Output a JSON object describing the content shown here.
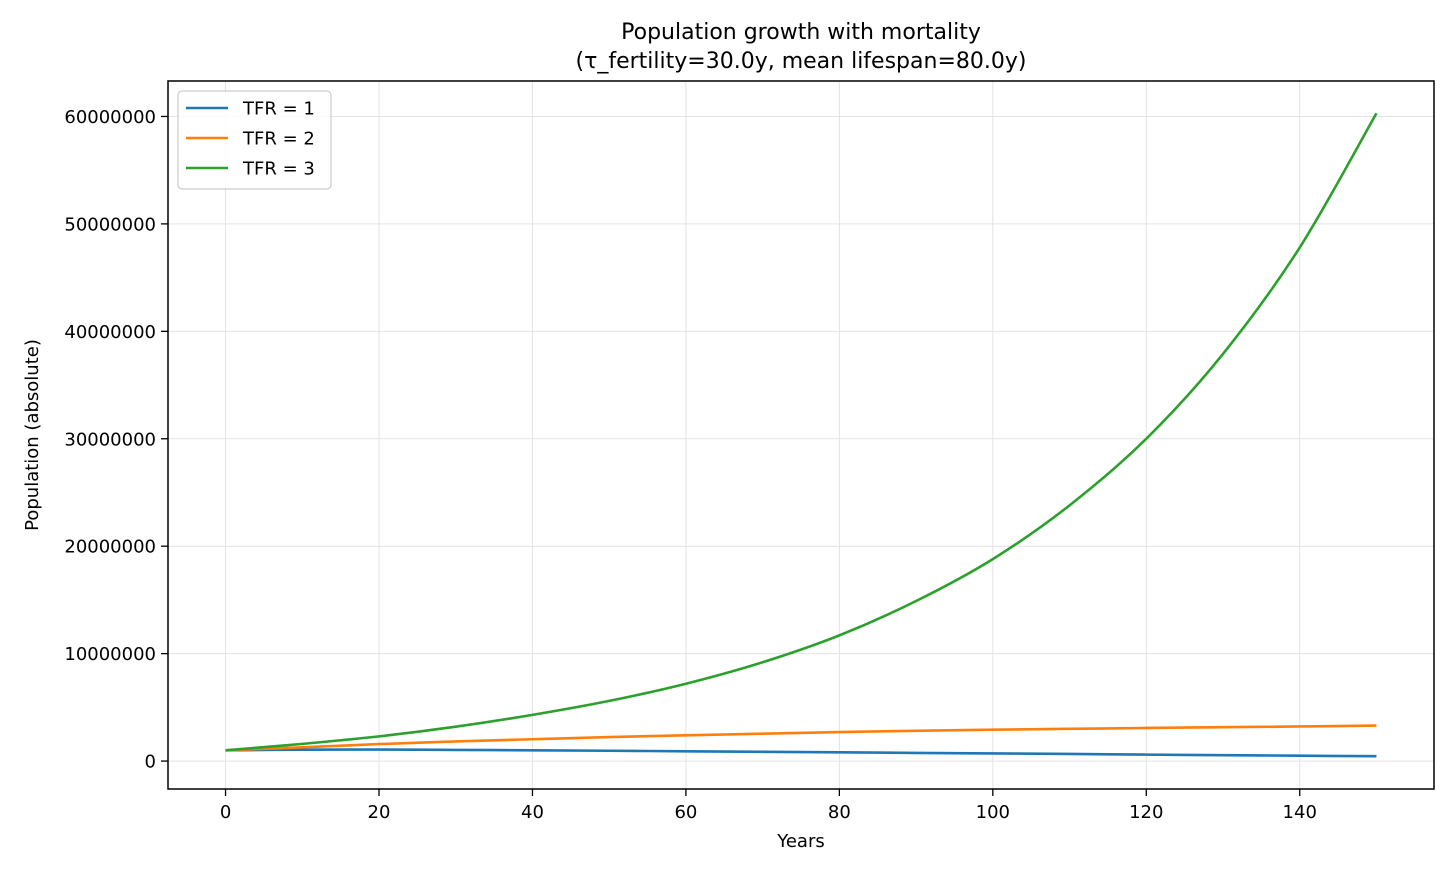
{
  "chart_data": {
    "type": "line",
    "title": "Population growth with mortality",
    "subtitle": "(τ_fertility=30.0y, mean lifespan=80.0y)",
    "xlabel": "Years",
    "ylabel": "Population (absolute)",
    "xlim": [
      -7.5,
      157.5
    ],
    "ylim": [
      -2600000,
      63300000
    ],
    "xticks": [
      0,
      20,
      40,
      60,
      80,
      100,
      120,
      140
    ],
    "yticks": [
      0,
      10000000,
      20000000,
      30000000,
      40000000,
      50000000,
      60000000
    ],
    "xtick_labels": [
      "0",
      "20",
      "40",
      "60",
      "80",
      "100",
      "120",
      "140"
    ],
    "ytick_labels": [
      "0",
      "10000000",
      "20000000",
      "30000000",
      "40000000",
      "50000000",
      "60000000"
    ],
    "grid": true,
    "legend_position": "top-left",
    "x": [
      0,
      10,
      20,
      30,
      40,
      50,
      60,
      70,
      80,
      90,
      100,
      110,
      120,
      130,
      140,
      150
    ],
    "series": [
      {
        "name": "TFR = 1",
        "color": "#1f77b4",
        "values": [
          1000000,
          1060000,
          1070000,
          1040000,
          1000000,
          960000,
          910000,
          860000,
          810000,
          760000,
          710000,
          660000,
          600000,
          550000,
          500000,
          450000
        ]
      },
      {
        "name": "TFR = 2",
        "color": "#ff7f0e",
        "values": [
          1000000,
          1280000,
          1580000,
          1830000,
          2030000,
          2230000,
          2400000,
          2550000,
          2700000,
          2820000,
          2920000,
          3000000,
          3080000,
          3150000,
          3220000,
          3300000
        ]
      },
      {
        "name": "TFR = 3",
        "color": "#2ca02c",
        "values": [
          1000000,
          1600000,
          2300000,
          3200000,
          4300000,
          5600000,
          7200000,
          9200000,
          11700000,
          14900000,
          18800000,
          23800000,
          30000000,
          37900000,
          47800000,
          60300000
        ]
      }
    ]
  }
}
